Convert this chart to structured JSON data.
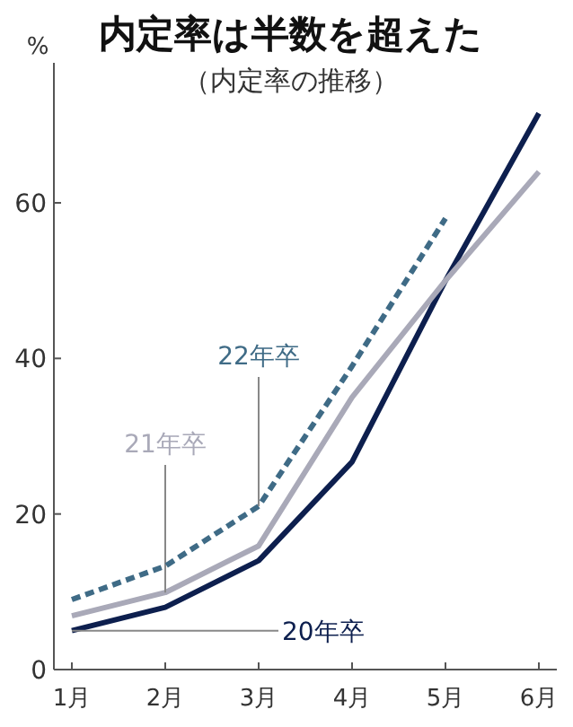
{
  "chart_data": {
    "type": "line",
    "title": "内定率は半数を超えた",
    "subtitle": "（内定率の推移）",
    "ylabel": "%",
    "categories": [
      "1月",
      "2月",
      "3月",
      "4月",
      "5月",
      "6月"
    ],
    "series": [
      {
        "name": "20年卒",
        "color": "#0d1f4e",
        "values": [
          5,
          8,
          14,
          26.7,
          50,
          71.5
        ]
      },
      {
        "name": "21年卒",
        "color": "#a9a9b8",
        "values": [
          6.9,
          9.9,
          15.9,
          35,
          50,
          64
        ]
      },
      {
        "name": "22年卒",
        "color": "#3f6b86",
        "line_style": "dashed",
        "values": [
          9,
          13.3,
          21,
          39,
          58,
          null
        ]
      }
    ],
    "ylim": [
      0,
      78
    ],
    "yticks": [
      0,
      20,
      40,
      60
    ],
    "grid": false,
    "legend": false,
    "marker": "none"
  }
}
